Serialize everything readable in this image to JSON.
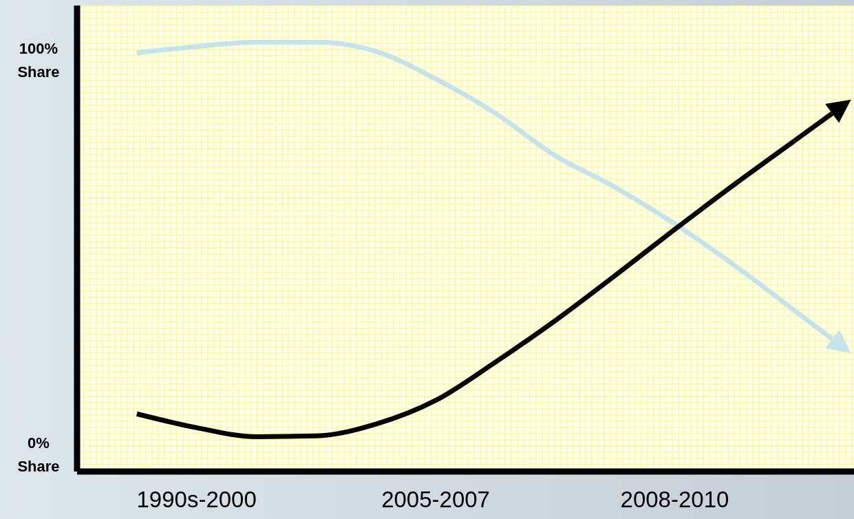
{
  "chart_data": {
    "type": "line",
    "categories": [
      null,
      null,
      "1990s-2000",
      null,
      null,
      null,
      "2005-2007",
      null,
      null,
      null,
      "2008-2010",
      null,
      null,
      null
    ],
    "ylim": [
      -5,
      113
    ],
    "yticks": [
      {
        "value": 0,
        "label": "0% Share"
      },
      {
        "value": 100,
        "label": "100% Share"
      }
    ],
    "series": [
      {
        "color": "#c5e3ea",
        "values": [
          null,
          101,
          102.6,
          103.7,
          103.7,
          101.4,
          94.4,
          85.7,
          75,
          67,
          57.7,
          47.2,
          35.8,
          null
        ]
      },
      {
        "color": "#000000",
        "values": [
          null,
          9.6,
          6.1,
          3.8,
          4,
          7,
          13,
          22.7,
          33.2,
          44.6,
          56.3,
          67.7,
          78.7,
          null
        ]
      }
    ],
    "marker": "none",
    "line_style": "solid"
  }
}
